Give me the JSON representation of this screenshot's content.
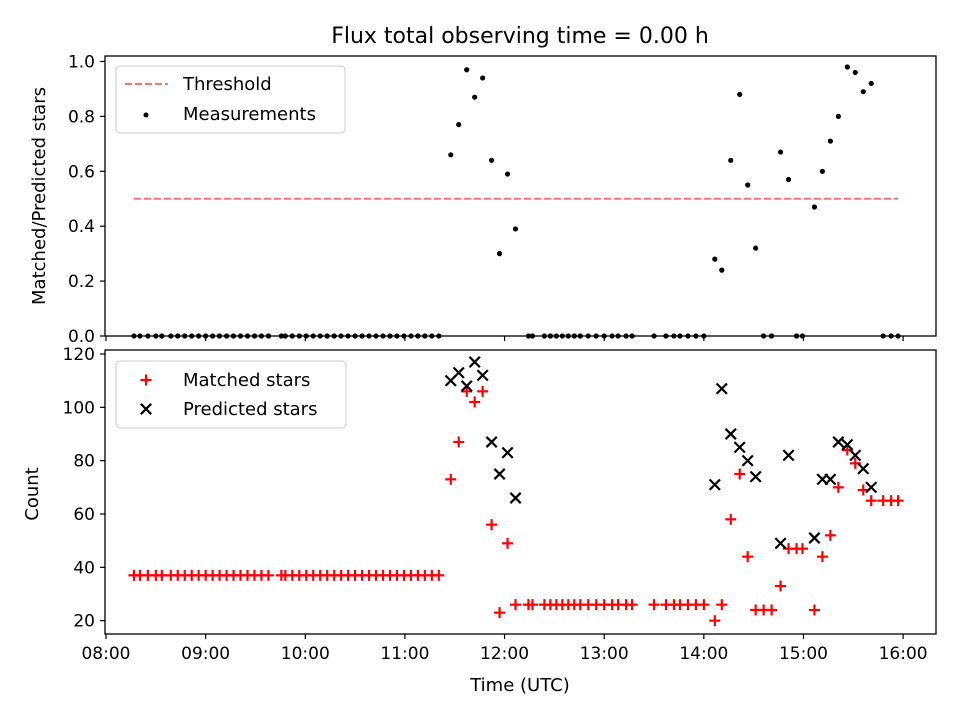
{
  "figure_title": "Flux total observing time = 0.00 h",
  "chart_data": [
    {
      "type": "scatter",
      "title": "Flux total observing time = 0.00 h",
      "xlabel": "",
      "ylabel": "Matched/Predicted stars",
      "xlim_hours": [
        7.99,
        16.33
      ],
      "ylim": [
        0,
        1.02
      ],
      "yticks": [
        0.0,
        0.2,
        0.4,
        0.6,
        0.8,
        1.0
      ],
      "ytick_labels": [
        "0.0",
        "0.2",
        "0.4",
        "0.6",
        "0.8",
        "1.0"
      ],
      "legend_position": "top-left",
      "threshold": {
        "name": "Threshold",
        "value": 0.5,
        "x_range_hours": [
          8.28,
          15.95
        ],
        "color": "#ff7070"
      },
      "series": [
        {
          "name": "Measurements",
          "color": "#000000",
          "points": [
            [
              8.28,
              0
            ],
            [
              8.34,
              0
            ],
            [
              8.42,
              0
            ],
            [
              8.5,
              0
            ],
            [
              8.56,
              0
            ],
            [
              8.65,
              0
            ],
            [
              8.72,
              0
            ],
            [
              8.79,
              0
            ],
            [
              8.86,
              0
            ],
            [
              8.93,
              0
            ],
            [
              9.0,
              0
            ],
            [
              9.07,
              0
            ],
            [
              9.14,
              0
            ],
            [
              9.21,
              0
            ],
            [
              9.28,
              0
            ],
            [
              9.35,
              0
            ],
            [
              9.42,
              0
            ],
            [
              9.49,
              0
            ],
            [
              9.56,
              0
            ],
            [
              9.63,
              0
            ],
            [
              9.76,
              0
            ],
            [
              9.8,
              0
            ],
            [
              9.87,
              0
            ],
            [
              9.94,
              0
            ],
            [
              10.01,
              0
            ],
            [
              10.08,
              0
            ],
            [
              10.15,
              0
            ],
            [
              10.22,
              0
            ],
            [
              10.29,
              0
            ],
            [
              10.36,
              0
            ],
            [
              10.43,
              0
            ],
            [
              10.5,
              0
            ],
            [
              10.57,
              0
            ],
            [
              10.64,
              0
            ],
            [
              10.71,
              0
            ],
            [
              10.78,
              0
            ],
            [
              10.85,
              0
            ],
            [
              10.92,
              0
            ],
            [
              10.99,
              0
            ],
            [
              11.06,
              0
            ],
            [
              11.13,
              0
            ],
            [
              11.2,
              0
            ],
            [
              11.27,
              0
            ],
            [
              11.34,
              0
            ],
            [
              11.46,
              0.66
            ],
            [
              11.54,
              0.77
            ],
            [
              11.62,
              0.97
            ],
            [
              11.7,
              0.87
            ],
            [
              11.78,
              0.94
            ],
            [
              11.87,
              0.64
            ],
            [
              11.95,
              0.3
            ],
            [
              12.03,
              0.59
            ],
            [
              12.11,
              0.39
            ],
            [
              12.24,
              0
            ],
            [
              12.28,
              0
            ],
            [
              12.4,
              0
            ],
            [
              12.46,
              0
            ],
            [
              12.52,
              0
            ],
            [
              12.58,
              0
            ],
            [
              12.64,
              0
            ],
            [
              12.7,
              0
            ],
            [
              12.76,
              0
            ],
            [
              12.84,
              0
            ],
            [
              12.92,
              0
            ],
            [
              13.0,
              0
            ],
            [
              13.08,
              0
            ],
            [
              13.14,
              0
            ],
            [
              13.22,
              0
            ],
            [
              13.28,
              0
            ],
            [
              13.5,
              0
            ],
            [
              13.62,
              0
            ],
            [
              13.7,
              0
            ],
            [
              13.76,
              0
            ],
            [
              13.84,
              0
            ],
            [
              13.92,
              0
            ],
            [
              14.0,
              0
            ],
            [
              14.11,
              0.28
            ],
            [
              14.18,
              0.24
            ],
            [
              14.27,
              0.64
            ],
            [
              14.36,
              0.88
            ],
            [
              14.44,
              0.55
            ],
            [
              14.52,
              0.32
            ],
            [
              14.6,
              0
            ],
            [
              14.68,
              0
            ],
            [
              14.77,
              0.67
            ],
            [
              14.85,
              0.57
            ],
            [
              14.93,
              0
            ],
            [
              14.99,
              0
            ],
            [
              15.11,
              0.47
            ],
            [
              15.19,
              0.6
            ],
            [
              15.27,
              0.71
            ],
            [
              15.35,
              0.8
            ],
            [
              15.44,
              0.98
            ],
            [
              15.52,
              0.96
            ],
            [
              15.6,
              0.89
            ],
            [
              15.68,
              0.92
            ],
            [
              15.8,
              0
            ],
            [
              15.88,
              0
            ],
            [
              15.95,
              0
            ]
          ]
        }
      ]
    },
    {
      "type": "scatter",
      "title": "",
      "xlabel": "Time (UTC)",
      "ylabel": "Count",
      "xlim_hours": [
        7.99,
        16.33
      ],
      "ylim": [
        15,
        121.5
      ],
      "yticks": [
        20,
        40,
        60,
        80,
        100,
        120
      ],
      "ytick_labels": [
        "20",
        "40",
        "60",
        "80",
        "100",
        "120"
      ],
      "xticks_hours": [
        8,
        9,
        10,
        11,
        12,
        13,
        14,
        15,
        16
      ],
      "xtick_labels": [
        "08:00",
        "09:00",
        "10:00",
        "11:00",
        "12:00",
        "13:00",
        "14:00",
        "15:00",
        "16:00"
      ],
      "legend_position": "top-left",
      "series": [
        {
          "name": "Matched stars",
          "marker": "plus",
          "color": "#ff0000",
          "points": [
            [
              8.28,
              37
            ],
            [
              8.34,
              37
            ],
            [
              8.42,
              37
            ],
            [
              8.5,
              37
            ],
            [
              8.56,
              37
            ],
            [
              8.65,
              37
            ],
            [
              8.72,
              37
            ],
            [
              8.79,
              37
            ],
            [
              8.86,
              37
            ],
            [
              8.93,
              37
            ],
            [
              9.0,
              37
            ],
            [
              9.07,
              37
            ],
            [
              9.14,
              37
            ],
            [
              9.21,
              37
            ],
            [
              9.28,
              37
            ],
            [
              9.35,
              37
            ],
            [
              9.42,
              37
            ],
            [
              9.49,
              37
            ],
            [
              9.56,
              37
            ],
            [
              9.63,
              37
            ],
            [
              9.76,
              37
            ],
            [
              9.8,
              37
            ],
            [
              9.87,
              37
            ],
            [
              9.94,
              37
            ],
            [
              10.01,
              37
            ],
            [
              10.08,
              37
            ],
            [
              10.15,
              37
            ],
            [
              10.22,
              37
            ],
            [
              10.29,
              37
            ],
            [
              10.36,
              37
            ],
            [
              10.43,
              37
            ],
            [
              10.5,
              37
            ],
            [
              10.57,
              37
            ],
            [
              10.64,
              37
            ],
            [
              10.71,
              37
            ],
            [
              10.78,
              37
            ],
            [
              10.85,
              37
            ],
            [
              10.92,
              37
            ],
            [
              10.99,
              37
            ],
            [
              11.06,
              37
            ],
            [
              11.13,
              37
            ],
            [
              11.2,
              37
            ],
            [
              11.27,
              37
            ],
            [
              11.34,
              37
            ],
            [
              11.46,
              73
            ],
            [
              11.54,
              87
            ],
            [
              11.62,
              106
            ],
            [
              11.7,
              102
            ],
            [
              11.78,
              106
            ],
            [
              11.87,
              56
            ],
            [
              11.95,
              23
            ],
            [
              12.03,
              49
            ],
            [
              12.11,
              26
            ],
            [
              12.24,
              26
            ],
            [
              12.28,
              26
            ],
            [
              12.4,
              26
            ],
            [
              12.46,
              26
            ],
            [
              12.52,
              26
            ],
            [
              12.58,
              26
            ],
            [
              12.64,
              26
            ],
            [
              12.7,
              26
            ],
            [
              12.76,
              26
            ],
            [
              12.84,
              26
            ],
            [
              12.92,
              26
            ],
            [
              13.0,
              26
            ],
            [
              13.08,
              26
            ],
            [
              13.14,
              26
            ],
            [
              13.22,
              26
            ],
            [
              13.28,
              26
            ],
            [
              13.5,
              26
            ],
            [
              13.62,
              26
            ],
            [
              13.7,
              26
            ],
            [
              13.76,
              26
            ],
            [
              13.84,
              26
            ],
            [
              13.92,
              26
            ],
            [
              14.0,
              26
            ],
            [
              14.11,
              20
            ],
            [
              14.18,
              26
            ],
            [
              14.27,
              58
            ],
            [
              14.36,
              75
            ],
            [
              14.44,
              44
            ],
            [
              14.52,
              24
            ],
            [
              14.6,
              24
            ],
            [
              14.68,
              24
            ],
            [
              14.77,
              33
            ],
            [
              14.85,
              47
            ],
            [
              14.93,
              47
            ],
            [
              14.99,
              47
            ],
            [
              15.11,
              24
            ],
            [
              15.19,
              44
            ],
            [
              15.27,
              52
            ],
            [
              15.35,
              70
            ],
            [
              15.44,
              84
            ],
            [
              15.52,
              79
            ],
            [
              15.6,
              69
            ],
            [
              15.68,
              65
            ],
            [
              15.8,
              65
            ],
            [
              15.88,
              65
            ],
            [
              15.95,
              65
            ]
          ]
        },
        {
          "name": "Predicted stars",
          "marker": "x",
          "color": "#000000",
          "points": [
            [
              11.46,
              110
            ],
            [
              11.54,
              113
            ],
            [
              11.62,
              108
            ],
            [
              11.7,
              117
            ],
            [
              11.78,
              112
            ],
            [
              11.87,
              87
            ],
            [
              11.95,
              75
            ],
            [
              12.03,
              83
            ],
            [
              12.11,
              66
            ],
            [
              14.11,
              71
            ],
            [
              14.18,
              107
            ],
            [
              14.27,
              90
            ],
            [
              14.36,
              85
            ],
            [
              14.44,
              80
            ],
            [
              14.52,
              74
            ],
            [
              14.77,
              49
            ],
            [
              14.85,
              82
            ],
            [
              15.11,
              51
            ],
            [
              15.19,
              73
            ],
            [
              15.27,
              73
            ],
            [
              15.35,
              87
            ],
            [
              15.44,
              86
            ],
            [
              15.52,
              82
            ],
            [
              15.6,
              77
            ],
            [
              15.68,
              70
            ]
          ]
        }
      ]
    }
  ]
}
